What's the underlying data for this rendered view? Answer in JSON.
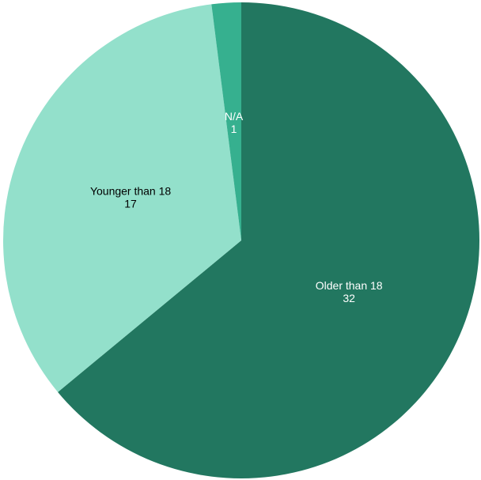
{
  "chart_data": {
    "type": "pie",
    "title": "",
    "start_angle_deg": 0,
    "direction": "clockwise",
    "slices": [
      {
        "label": "Older than 18",
        "value": 32,
        "value_text": "32",
        "color": "#227760",
        "label_color": "#ffffff"
      },
      {
        "label": "Younger than 18",
        "value": 17,
        "value_text": "17",
        "color": "#93E0CB",
        "label_color": "#000000"
      },
      {
        "label": "N/A",
        "value": 1,
        "value_text": "1",
        "color": "#36B08F",
        "label_color": "#ffffff"
      }
    ],
    "legend": "none",
    "show_labels": true
  }
}
